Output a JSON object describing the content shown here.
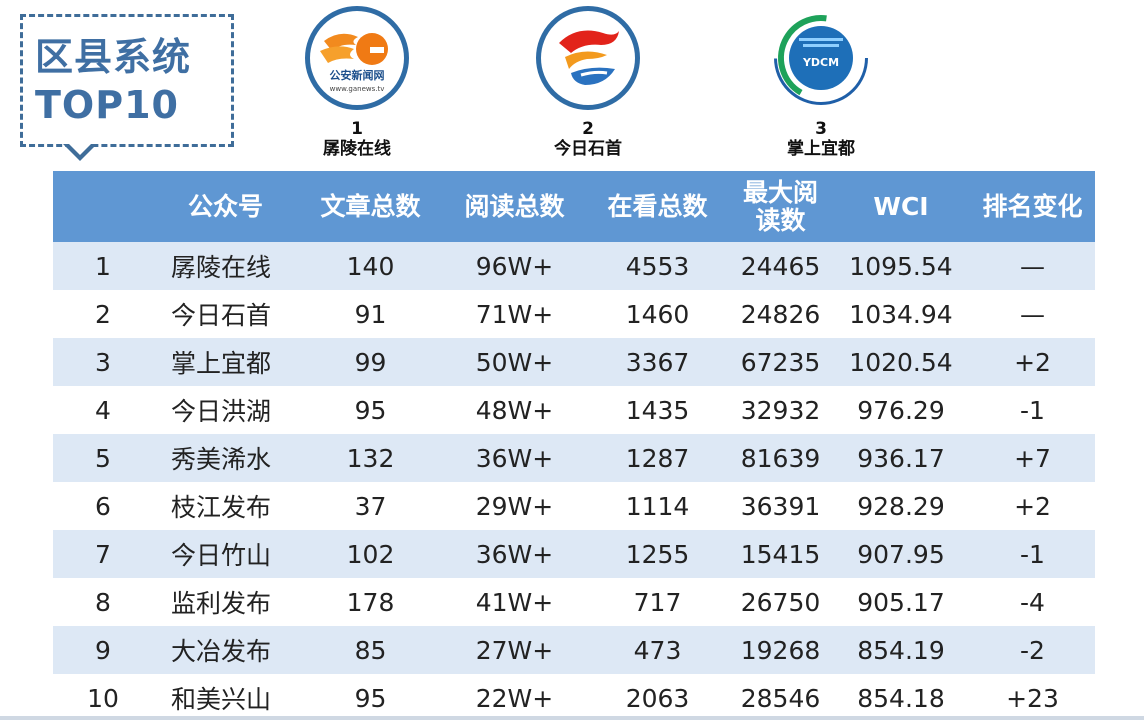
{
  "title": {
    "line1": "区县系统",
    "line2": "TOP10"
  },
  "podium": [
    {
      "rank": "1",
      "name": "孱陵在线",
      "logo_text": "公安新闻网",
      "logo_sub": "www.ganews.tv",
      "icon": "ganews-logo-icon"
    },
    {
      "rank": "2",
      "name": "今日石首",
      "icon": "shishou-logo-icon"
    },
    {
      "rank": "3",
      "name": "掌上宜都",
      "logo_text": "YDCM",
      "icon": "ydcm-logo-icon"
    }
  ],
  "table": {
    "headers": [
      "",
      "公众号",
      "文章总数",
      "阅读总数",
      "在看总数",
      "最大阅读数",
      "WCI",
      "排名变化"
    ],
    "rows": [
      [
        "1",
        "孱陵在线",
        "140",
        "96W+",
        "4553",
        "24465",
        "1095.54",
        "—"
      ],
      [
        "2",
        "今日石首",
        "91",
        "71W+",
        "1460",
        "24826",
        "1034.94",
        "—"
      ],
      [
        "3",
        "掌上宜都",
        "99",
        "50W+",
        "3367",
        "67235",
        "1020.54",
        "+2"
      ],
      [
        "4",
        "今日洪湖",
        "95",
        "48W+",
        "1435",
        "32932",
        "976.29",
        "-1"
      ],
      [
        "5",
        "秀美浠水",
        "132",
        "36W+",
        "1287",
        "81639",
        "936.17",
        "+7"
      ],
      [
        "6",
        "枝江发布",
        "37",
        "29W+",
        "1114",
        "36391",
        "928.29",
        "+2"
      ],
      [
        "7",
        "今日竹山",
        "102",
        "36W+",
        "1255",
        "15415",
        "907.95",
        "-1"
      ],
      [
        "8",
        "监利发布",
        "178",
        "41W+",
        "717",
        "26750",
        "905.17",
        "-4"
      ],
      [
        "9",
        "大冶发布",
        "85",
        "27W+",
        "473",
        "19268",
        "854.19",
        "-2"
      ],
      [
        "10",
        "和美兴山",
        "95",
        "22W+",
        "2063",
        "28546",
        "854.18",
        "+23"
      ]
    ]
  },
  "colors": {
    "header_bg": "#5f97d3",
    "stripe": "#dde8f5",
    "title": "#3f6fa3",
    "logo_ring": "#2f6ca5"
  }
}
